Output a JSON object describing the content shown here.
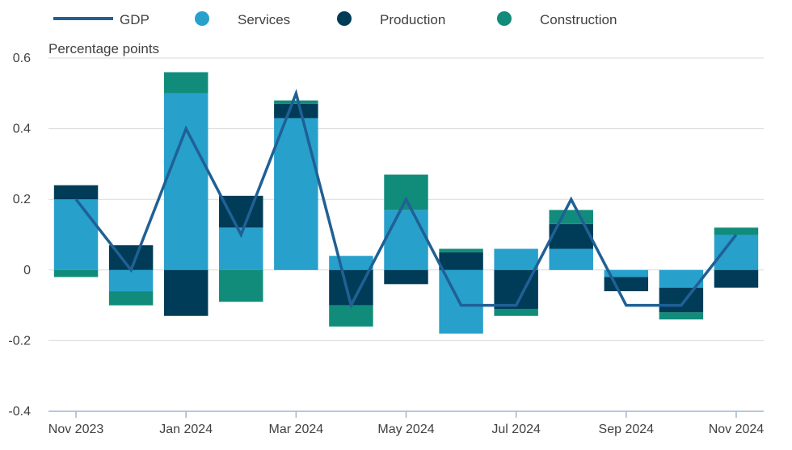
{
  "chart_data": {
    "type": "bar",
    "stacked": true,
    "ylabel": "Percentage points",
    "ylim": [
      -0.4,
      0.6
    ],
    "yticks": [
      0.6,
      0.4,
      0.2,
      0,
      -0.2,
      -0.4
    ],
    "ytick_labels": [
      "0.6",
      "0.4",
      "0.2",
      "0",
      "-0.2",
      "-0.4"
    ],
    "grid": true,
    "legend_position": "top",
    "categories": [
      "Nov 2023",
      "Dec 2023",
      "Jan 2024",
      "Feb 2024",
      "Mar 2024",
      "Apr 2024",
      "May 2024",
      "Jun 2024",
      "Jul 2024",
      "Aug 2024",
      "Sep 2024",
      "Oct 2024",
      "Nov 2024"
    ],
    "xtick_labels": [
      "Nov 2023",
      "",
      "Jan 2024",
      "",
      "Mar 2024",
      "",
      "May 2024",
      "",
      "Jul 2024",
      "",
      "Sep 2024",
      "",
      "Nov 2024"
    ],
    "series": [
      {
        "name": "Services",
        "kind": "bar",
        "color": "#27a0cc",
        "values": [
          0.2,
          -0.06,
          0.5,
          0.12,
          0.43,
          0.04,
          0.17,
          -0.18,
          0.06,
          0.06,
          -0.02,
          -0.05,
          0.1
        ]
      },
      {
        "name": "Production",
        "kind": "bar",
        "color": "#003c57",
        "values": [
          0.04,
          0.07,
          -0.13,
          0.09,
          0.04,
          -0.1,
          -0.04,
          0.05,
          -0.11,
          0.07,
          -0.04,
          -0.07,
          -0.05
        ]
      },
      {
        "name": "Construction",
        "kind": "bar",
        "color": "#118c7b",
        "values": [
          -0.02,
          -0.04,
          0.06,
          -0.09,
          0.01,
          -0.06,
          0.1,
          0.01,
          -0.02,
          0.04,
          0.0,
          -0.02,
          0.02
        ]
      },
      {
        "name": "GDP",
        "kind": "line",
        "color": "#206095",
        "values": [
          0.2,
          0.0,
          0.4,
          0.1,
          0.5,
          -0.1,
          0.2,
          -0.1,
          -0.1,
          0.2,
          -0.1,
          -0.1,
          0.1
        ]
      }
    ]
  }
}
